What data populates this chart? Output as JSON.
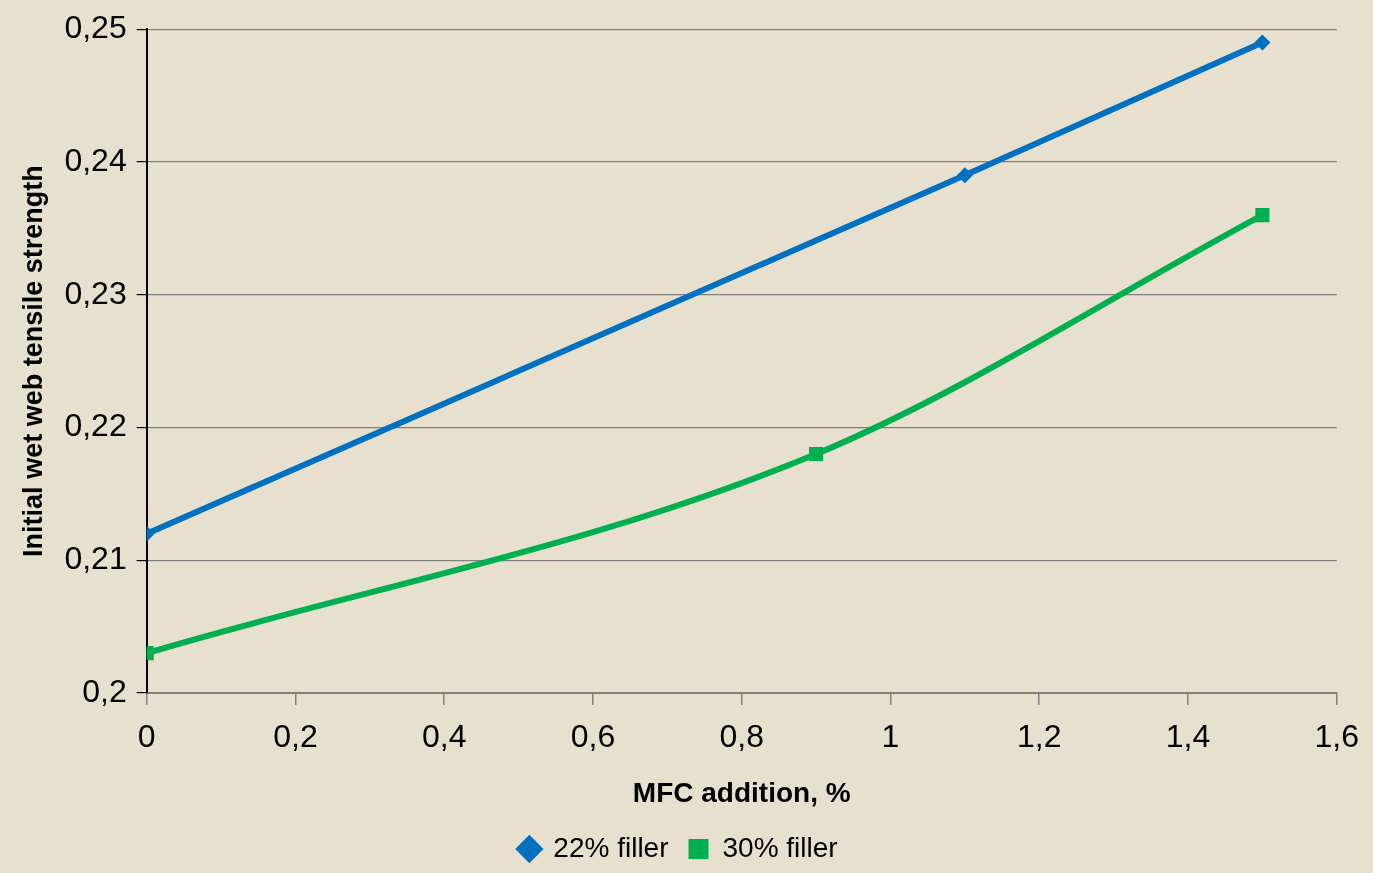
{
  "chart_data": {
    "type": "line",
    "xlabel": "MFC addition, %",
    "ylabel": "Initial wet web tensile strength",
    "xlim": [
      0,
      1.6
    ],
    "ylim": [
      0.2,
      0.25
    ],
    "xticks": [
      0,
      {
        "value": 0.2,
        "label": "0,2"
      },
      {
        "value": 0.4,
        "label": "0,4"
      },
      {
        "value": 0.6,
        "label": "0,6"
      },
      {
        "value": 0.8,
        "label": "0,8"
      },
      1,
      {
        "value": 1.2,
        "label": "1,2"
      },
      {
        "value": 1.4,
        "label": "1,4"
      },
      {
        "value": 1.6,
        "label": "1,6"
      }
    ],
    "yticks": [
      {
        "value": 0.2,
        "label": "0,2"
      },
      {
        "value": 0.21,
        "label": "0,21"
      },
      {
        "value": 0.22,
        "label": "0,22"
      },
      {
        "value": 0.23,
        "label": "0,23"
      },
      {
        "value": 0.24,
        "label": "0,24"
      },
      {
        "value": 0.25,
        "label": "0,25"
      }
    ],
    "grid": "y",
    "legend": "bottom",
    "line_style": "solid",
    "series": [
      {
        "name": "22% filler",
        "color": "#0070c0",
        "marker": "diamond",
        "x": [
          0,
          1.1,
          1.5
        ],
        "values": [
          0.212,
          0.239,
          0.249
        ]
      },
      {
        "name": "30% filler",
        "color": "#00b050",
        "marker": "square",
        "x": [
          0,
          0.9,
          1.5
        ],
        "values": [
          0.203,
          0.218,
          0.236
        ]
      }
    ]
  }
}
